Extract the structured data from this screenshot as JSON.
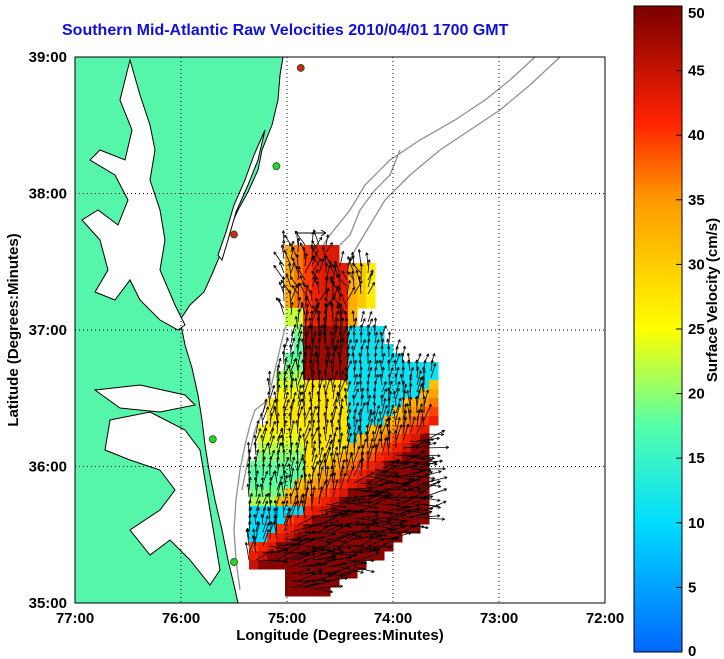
{
  "title": "Southern Mid-Atlantic Raw Velocities 2010/04/01 1700 GMT",
  "xlabel": "Longitude (Degrees:Minutes)",
  "ylabel": "Latitude (Degrees:Minutes)",
  "x_ticks": [
    "77:00",
    "76:00",
    "75:00",
    "74:00",
    "73:00",
    "72:00"
  ],
  "y_ticks": [
    "39:00",
    "38:00",
    "37:00",
    "36:00",
    "35:00"
  ],
  "colorbar": {
    "label": "Surface Velocity (cm/s)",
    "ticks": [
      "50",
      "45",
      "40",
      "35",
      "30",
      "25",
      "20",
      "15",
      "10",
      "5",
      "0"
    ],
    "min": 0,
    "max": 50
  },
  "colors": {
    "land": "#55f5aa",
    "title": "#1010d8",
    "vectors": "#000000",
    "bathymetry": "#909090"
  },
  "chart_data": {
    "type": "heatmap",
    "title": "Southern Mid-Atlantic Raw Velocities 2010/04/01 1700 GMT",
    "xlabel": "Longitude (Degrees:Minutes)",
    "ylabel": "Latitude (Degrees:Minutes)",
    "xlim": [
      -77,
      -72
    ],
    "ylim": [
      35,
      39
    ],
    "grid": true,
    "colorbar_label": "Surface Velocity (cm/s)",
    "colorbar_range": [
      0,
      50
    ],
    "stations": [
      {
        "lon": -74.87,
        "lat": 38.92,
        "color": "red"
      },
      {
        "lon": -75.1,
        "lat": 38.2,
        "color": "green"
      },
      {
        "lon": -75.5,
        "lat": 37.7,
        "color": "red"
      },
      {
        "lon": -75.7,
        "lat": 36.2,
        "color": "green"
      },
      {
        "lon": -75.5,
        "lat": 35.3,
        "color": "green"
      }
    ]
  }
}
